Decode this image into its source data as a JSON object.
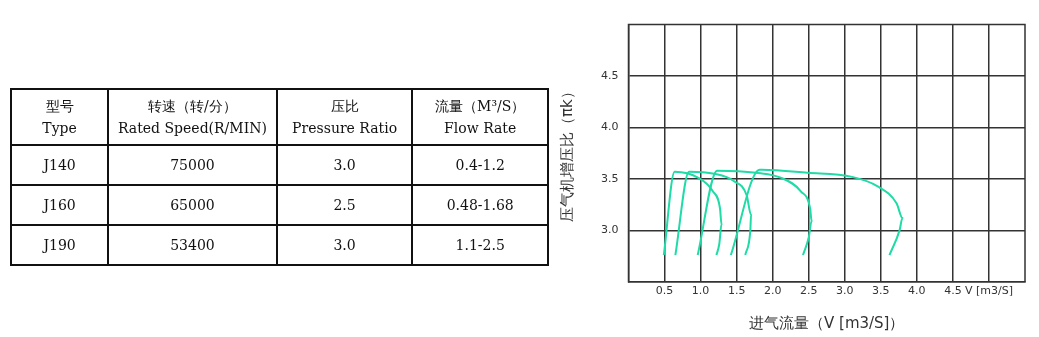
{
  "chart_data": [
    {
      "type": "other",
      "annotations": [
        "型号\nType",
        "转速（转/分）\nRated Speed(R/MIN)",
        "压比\nPressure Ratio",
        "流量（M³/S）\nFlow Rate",
        "J140",
        "75000",
        "3.0",
        "0.4-1.2",
        "J160",
        "65000",
        "2.5",
        "0.48-1.68",
        "J190",
        "53400",
        "3.0",
        "1.1-2.5"
      ]
    },
    {
      "type": "line",
      "xlabel": "进气流量（V [m3/S]）",
      "ylabel": "压气机增压比（πk）",
      "xlim": [
        0,
        5.5
      ],
      "ylim": [
        2.5,
        5.0
      ],
      "xticks": [
        0.5,
        {
          "value": 1,
          "label": "1.0"
        },
        1.5,
        {
          "value": 2,
          "label": "2.0"
        },
        2.5,
        {
          "value": 3,
          "label": "3.0"
        },
        3.5,
        {
          "value": 4,
          "label": "4.0"
        },
        4.5,
        {
          "value": 5,
          "label": "V [m3/S]"
        }
      ],
      "yticks": [
        {
          "value": 3,
          "label": "3.0"
        },
        3.5,
        {
          "value": 4,
          "label": "4.0"
        },
        4.5
      ],
      "grid": true,
      "legend": false,
      "marker": "none",
      "line_style": "solid",
      "series": [
        {
          "color": "#1fdba6",
          "x": [
            0.49,
            0.64,
            0.97,
            1.17,
            1.27,
            1.29,
            1.26,
            1.22
          ],
          "values": [
            2.76,
            3.57,
            3.51,
            3.38,
            3.21,
            3.06,
            2.87,
            2.76
          ]
        },
        {
          "color": "#1fdba6",
          "x": [
            0.65,
            0.84,
            1.19,
            1.46,
            1.64,
            1.7,
            1.69,
            1.62
          ],
          "values": [
            2.76,
            3.57,
            3.55,
            3.48,
            3.34,
            3.15,
            3.0,
            2.76
          ]
        },
        {
          "color": "#1fdba6",
          "x": [
            0.96,
            1.23,
            1.77,
            2.12,
            2.39,
            2.52,
            2.54,
            2.5,
            2.42
          ],
          "values": [
            2.76,
            3.58,
            3.56,
            3.51,
            3.38,
            3.21,
            3.09,
            2.93,
            2.76
          ]
        },
        {
          "color": "#1fdba6",
          "x": [
            1.42,
            1.82,
            2.48,
            3.1,
            3.45,
            3.72,
            3.8,
            3.76,
            3.62
          ],
          "values": [
            2.76,
            3.59,
            3.56,
            3.52,
            3.43,
            3.26,
            3.12,
            3.0,
            2.76
          ]
        }
      ]
    }
  ]
}
